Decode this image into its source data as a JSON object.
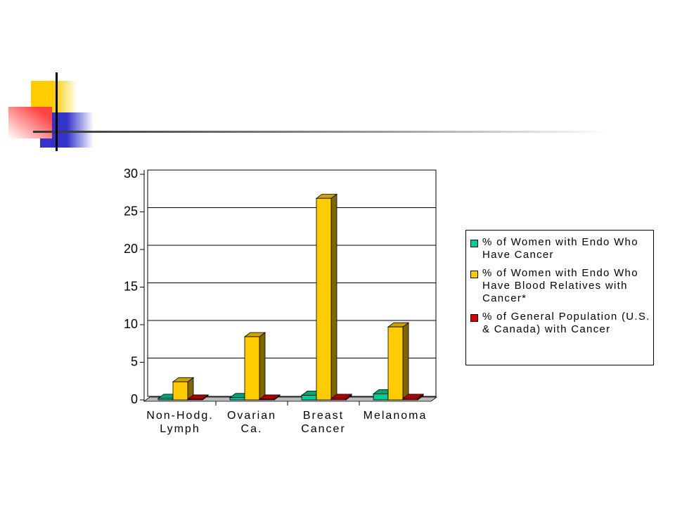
{
  "chart_data": {
    "type": "bar3d",
    "categories": [
      "Non-Hodg. Lymph",
      "Ovarian Ca.",
      "Breast Cancer",
      "Melanoma"
    ],
    "series": [
      {
        "name": "% of Women with Endo Who Have Cancer",
        "color": "#00cc99",
        "values": [
          0.2,
          0.3,
          0.6,
          0.8
        ]
      },
      {
        "name": "% of Women with Endo Who Have Blood Relatives with Cancer*",
        "color": "#ffcc00",
        "values": [
          2.4,
          8.4,
          26.8,
          9.7
        ]
      },
      {
        "name": "% of General Population (U.S. & Canada) with Cancer",
        "color": "#dd0000",
        "values": [
          0.1,
          0.1,
          0.2,
          0.2
        ]
      }
    ],
    "ylim": [
      0,
      30
    ],
    "yticks": [
      0,
      5,
      10,
      15,
      20,
      25,
      30
    ],
    "grid": true,
    "legend": "right"
  }
}
